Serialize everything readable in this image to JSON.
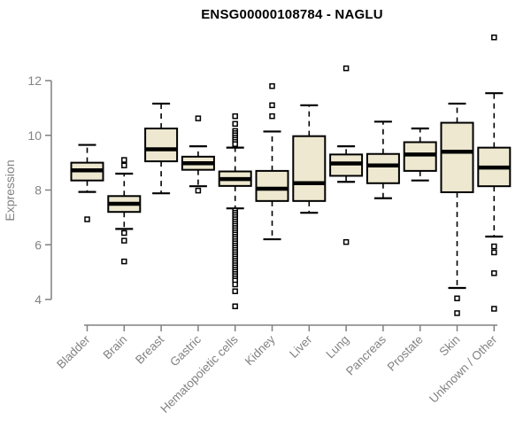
{
  "chart_data": {
    "type": "boxplot",
    "title": "ENSG00000108784 - NAGLU",
    "ylabel": "Expression",
    "xlabel": "",
    "ylim": [
      4,
      12
    ],
    "yticks": [
      4,
      6,
      8,
      10,
      12
    ],
    "grid": false,
    "legend": "none",
    "colors": {
      "box_fill": "#ede8cf",
      "box_border": "#000000",
      "median": "#000000",
      "whisker": "#000000",
      "outlier_fill": "#ffffff",
      "axis": "#808080",
      "tick_text": "#828282",
      "title_text": "#000000"
    },
    "categories": [
      "Bladder",
      "Brain",
      "Breast",
      "Gastric",
      "Hematopoietic cells",
      "Kidney",
      "Liver",
      "Lung",
      "Pancreas",
      "Prostate",
      "Skin",
      "Unknown / Other"
    ],
    "series": [
      {
        "name": "Bladder",
        "whisker_low": 7.93,
        "q1": 8.35,
        "median": 8.72,
        "q3": 9.0,
        "whisker_high": 9.65,
        "outliers": [
          6.93
        ]
      },
      {
        "name": "Brain",
        "whisker_low": 6.58,
        "q1": 7.2,
        "median": 7.5,
        "q3": 7.78,
        "whisker_high": 8.6,
        "outliers": [
          9.1,
          8.9,
          6.43,
          6.15,
          5.39
        ]
      },
      {
        "name": "Breast",
        "whisker_low": 7.88,
        "q1": 9.05,
        "median": 9.49,
        "q3": 10.25,
        "whisker_high": 11.16,
        "outliers": []
      },
      {
        "name": "Gastric",
        "whisker_low": 8.14,
        "q1": 8.74,
        "median": 8.98,
        "q3": 9.22,
        "whisker_high": 9.6,
        "outliers": [
          10.62,
          7.98
        ]
      },
      {
        "name": "Hematopoietic cells",
        "whisker_low": 7.33,
        "q1": 8.15,
        "median": 8.4,
        "q3": 8.68,
        "whisker_high": 9.55,
        "outliers": [
          10.7,
          10.42,
          10.16,
          10.08,
          10.0,
          9.92,
          9.84,
          9.76,
          9.68,
          7.25,
          7.17,
          7.09,
          7.01,
          6.93,
          6.85,
          6.77,
          6.69,
          6.61,
          6.53,
          6.45,
          6.37,
          6.29,
          6.21,
          6.13,
          6.05,
          5.97,
          5.89,
          5.81,
          5.73,
          5.65,
          5.57,
          5.49,
          5.41,
          5.33,
          5.25,
          5.17,
          5.09,
          5.01,
          4.93,
          4.85,
          4.77,
          4.69,
          4.55,
          4.3,
          3.75
        ]
      },
      {
        "name": "Kidney",
        "whisker_low": 6.2,
        "q1": 7.6,
        "median": 8.05,
        "q3": 8.7,
        "whisker_high": 10.14,
        "outliers": [
          11.8,
          11.1,
          10.7
        ]
      },
      {
        "name": "Liver",
        "whisker_low": 7.17,
        "q1": 7.6,
        "median": 8.25,
        "q3": 9.97,
        "whisker_high": 11.1,
        "outliers": []
      },
      {
        "name": "Lung",
        "whisker_low": 8.3,
        "q1": 8.52,
        "median": 8.97,
        "q3": 9.3,
        "whisker_high": 9.6,
        "outliers": [
          12.45,
          6.1
        ]
      },
      {
        "name": "Pancreas",
        "whisker_low": 7.7,
        "q1": 8.25,
        "median": 8.9,
        "q3": 9.32,
        "whisker_high": 10.5,
        "outliers": []
      },
      {
        "name": "Prostate",
        "whisker_low": 8.35,
        "q1": 8.7,
        "median": 9.3,
        "q3": 9.75,
        "whisker_high": 10.25,
        "outliers": []
      },
      {
        "name": "Skin",
        "whisker_low": 4.42,
        "q1": 7.92,
        "median": 9.4,
        "q3": 10.46,
        "whisker_high": 11.16,
        "outliers": [
          4.04,
          3.5
        ]
      },
      {
        "name": "Unknown / Other",
        "whisker_low": 6.3,
        "q1": 8.14,
        "median": 8.82,
        "q3": 9.55,
        "whisker_high": 11.54,
        "outliers": [
          13.58,
          5.94,
          5.72,
          4.96,
          3.66
        ]
      }
    ]
  }
}
